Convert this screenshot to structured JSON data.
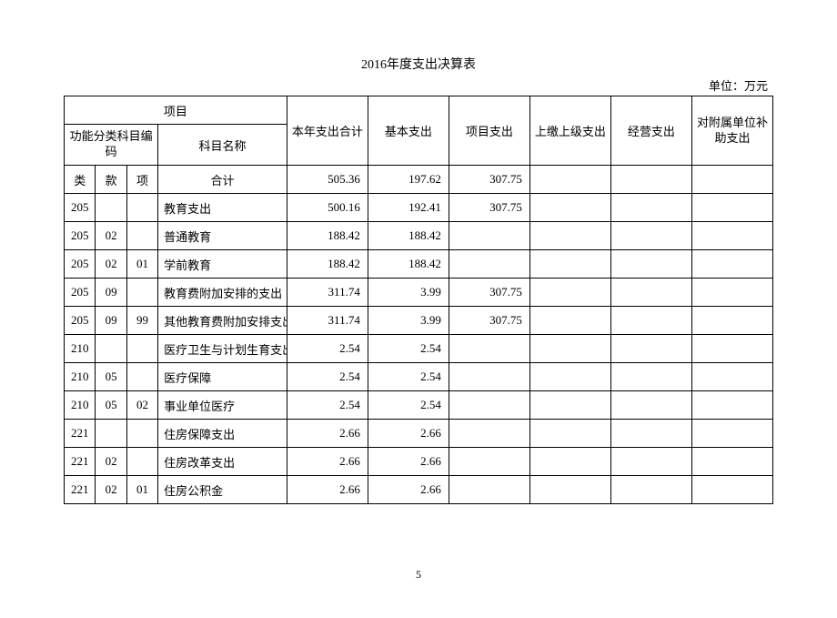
{
  "title": "2016年度支出决算表",
  "unit": "单位：万元",
  "page_number": "5",
  "header": {
    "project": "项目",
    "code_group": "功能分类科目编码",
    "subject_name": "科目名称",
    "c1": "本年支出合计",
    "c2": "基本支出",
    "c3": "项目支出",
    "c4": "上缴上级支出",
    "c5": "经营支出",
    "c6": "对附属单位补助支出",
    "lei": "类",
    "kuan": "款",
    "xiang": "项",
    "heji": "合计"
  },
  "rows": [
    {
      "lei": "",
      "kuan": "",
      "xiang": "",
      "name": "合计",
      "is_heji": true,
      "v1": "505.36",
      "v2": "197.62",
      "v3": "307.75",
      "v4": "",
      "v5": "",
      "v6": ""
    },
    {
      "lei": "205",
      "kuan": "",
      "xiang": "",
      "name": "教育支出",
      "v1": "500.16",
      "v2": "192.41",
      "v3": "307.75",
      "v4": "",
      "v5": "",
      "v6": ""
    },
    {
      "lei": "205",
      "kuan": "02",
      "xiang": "",
      "name": "普通教育",
      "v1": "188.42",
      "v2": "188.42",
      "v3": "",
      "v4": "",
      "v5": "",
      "v6": ""
    },
    {
      "lei": "205",
      "kuan": "02",
      "xiang": "01",
      "name": "学前教育",
      "v1": "188.42",
      "v2": "188.42",
      "v3": "",
      "v4": "",
      "v5": "",
      "v6": ""
    },
    {
      "lei": "205",
      "kuan": "09",
      "xiang": "",
      "name": "教育费附加安排的支出",
      "v1": "311.74",
      "v2": "3.99",
      "v3": "307.75",
      "v4": "",
      "v5": "",
      "v6": ""
    },
    {
      "lei": "205",
      "kuan": "09",
      "xiang": "99",
      "name": "其他教育费附加安排支出",
      "v1": "311.74",
      "v2": "3.99",
      "v3": "307.75",
      "v4": "",
      "v5": "",
      "v6": ""
    },
    {
      "lei": "210",
      "kuan": "",
      "xiang": "",
      "name": "医疗卫生与计划生育支出",
      "v1": "2.54",
      "v2": "2.54",
      "v3": "",
      "v4": "",
      "v5": "",
      "v6": ""
    },
    {
      "lei": "210",
      "kuan": "05",
      "xiang": "",
      "name": "医疗保障",
      "v1": "2.54",
      "v2": "2.54",
      "v3": "",
      "v4": "",
      "v5": "",
      "v6": ""
    },
    {
      "lei": "210",
      "kuan": "05",
      "xiang": "02",
      "name": "事业单位医疗",
      "v1": "2.54",
      "v2": "2.54",
      "v3": "",
      "v4": "",
      "v5": "",
      "v6": ""
    },
    {
      "lei": "221",
      "kuan": "",
      "xiang": "",
      "name": "住房保障支出",
      "v1": "2.66",
      "v2": "2.66",
      "v3": "",
      "v4": "",
      "v5": "",
      "v6": ""
    },
    {
      "lei": "221",
      "kuan": "02",
      "xiang": "",
      "name": "住房改革支出",
      "v1": "2.66",
      "v2": "2.66",
      "v3": "",
      "v4": "",
      "v5": "",
      "v6": ""
    },
    {
      "lei": "221",
      "kuan": "02",
      "xiang": "01",
      "name": "住房公积金",
      "v1": "2.66",
      "v2": "2.66",
      "v3": "",
      "v4": "",
      "v5": "",
      "v6": ""
    }
  ]
}
